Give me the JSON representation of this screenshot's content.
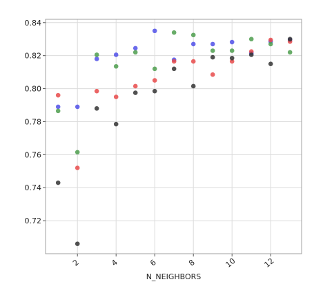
{
  "chart_data": {
    "type": "scatter",
    "title": "",
    "xlabel": "N_NEIGHBORS",
    "ylabel": "",
    "xlim": [
      0.35,
      13.6
    ],
    "ylim": [
      0.7,
      0.842
    ],
    "xticks": [
      2,
      4,
      6,
      8,
      10,
      12
    ],
    "yticks": [
      0.72,
      0.74,
      0.76,
      0.78,
      0.8,
      0.82,
      0.84
    ],
    "xtick_labels": [
      "2",
      "4",
      "6",
      "8",
      "10",
      "12"
    ],
    "ytick_labels": [
      "0.72",
      "0.74",
      "0.76",
      "0.78",
      "0.80",
      "0.82",
      "0.84"
    ],
    "grid": true,
    "x": [
      1,
      2,
      3,
      4,
      5,
      6,
      7,
      8,
      9,
      10,
      11,
      12,
      13
    ],
    "series": [
      {
        "color": "#5050e8",
        "values": [
          0.789,
          0.789,
          0.818,
          0.8205,
          0.8245,
          0.835,
          0.8175,
          0.827,
          0.827,
          0.8282,
          0.8215,
          0.8285,
          0.8295
        ]
      },
      {
        "color": "#4e9e4e",
        "values": [
          0.7865,
          0.7615,
          0.8205,
          0.8135,
          0.822,
          0.812,
          0.834,
          0.8325,
          0.823,
          0.823,
          0.83,
          0.827,
          0.822
        ]
      },
      {
        "color": "#e84a4a",
        "values": [
          0.796,
          0.752,
          0.7985,
          0.795,
          0.8015,
          0.805,
          0.8165,
          0.8165,
          0.8085,
          0.8165,
          0.8225,
          0.8295,
          0.8285
        ]
      },
      {
        "color": "#333333",
        "values": [
          0.743,
          0.706,
          0.788,
          0.7785,
          0.7975,
          0.7985,
          0.812,
          0.8015,
          0.819,
          0.8185,
          0.8205,
          0.815,
          0.83
        ]
      }
    ]
  }
}
